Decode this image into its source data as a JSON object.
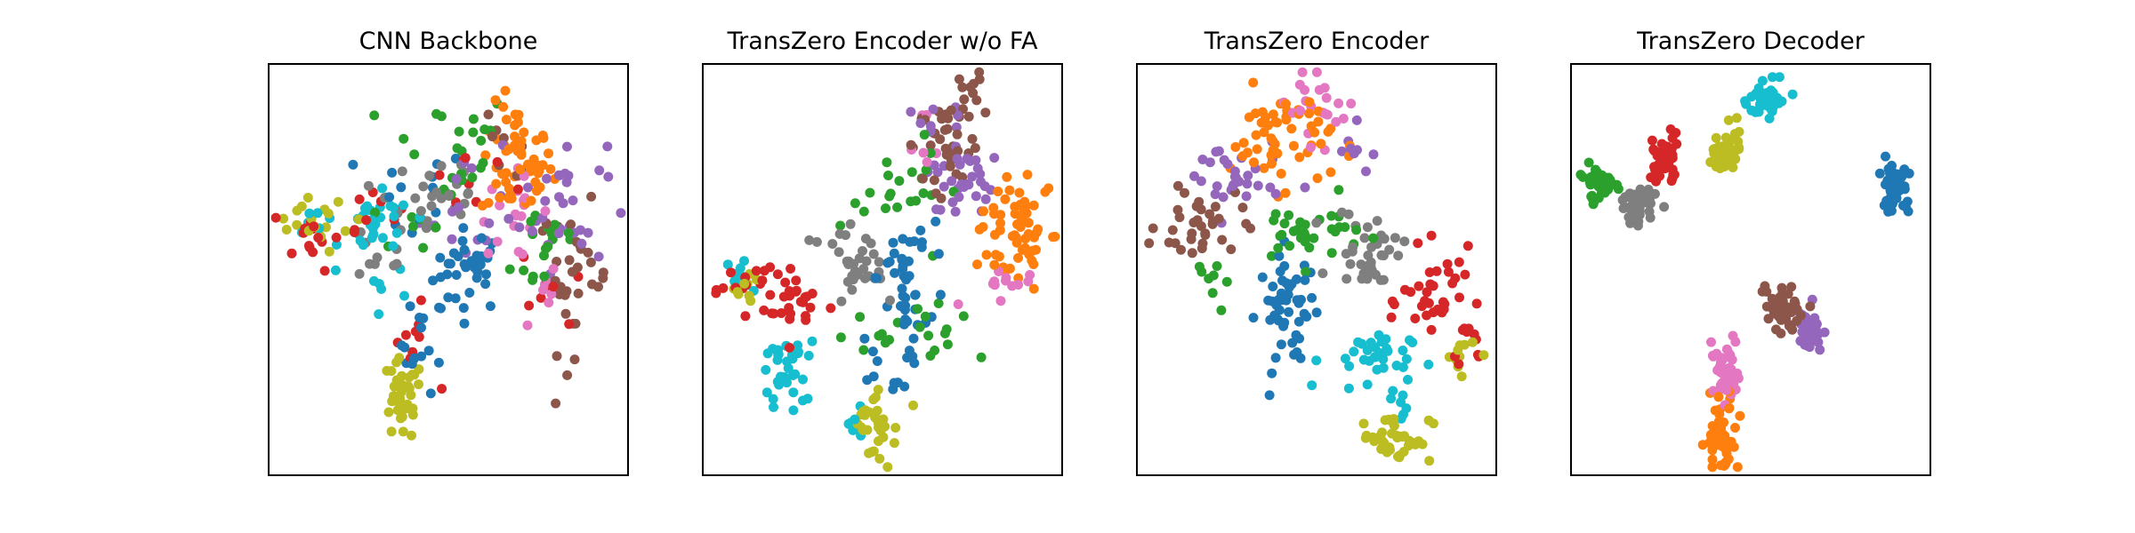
{
  "chart_data": [
    {
      "type": "scatter",
      "title": "CNN Backbone",
      "grid": false,
      "axes_visible": false,
      "xlim": [
        0,
        100
      ],
      "ylim": [
        0,
        100
      ],
      "series": [
        {
          "color": "#1f77b4",
          "clusters": [
            {
              "cx": 56,
              "cy": 50,
              "sx": 5,
              "sy": 5,
              "n": 34
            },
            {
              "cx": 43,
              "cy": 32,
              "sx": 3,
              "sy": 6,
              "n": 16
            },
            {
              "cx": 40,
              "cy": 68,
              "sx": 8,
              "sy": 6,
              "n": 12
            }
          ]
        },
        {
          "color": "#ff7f0e",
          "clusters": [
            {
              "cx": 69,
              "cy": 76,
              "sx": 5,
              "sy": 7,
              "n": 58
            }
          ]
        },
        {
          "color": "#2ca02c",
          "clusters": [
            {
              "cx": 50,
              "cy": 80,
              "sx": 9,
              "sy": 7,
              "n": 22
            },
            {
              "cx": 78,
              "cy": 56,
              "sx": 5,
              "sy": 7,
              "n": 18
            },
            {
              "cx": 40,
              "cy": 62,
              "sx": 6,
              "sy": 5,
              "n": 8
            }
          ]
        },
        {
          "color": "#d62728",
          "clusters": [
            {
              "cx": 12,
              "cy": 58,
              "sx": 4,
              "sy": 4,
              "n": 14
            },
            {
              "cx": 28,
              "cy": 66,
              "sx": 4,
              "sy": 3,
              "n": 8
            },
            {
              "cx": 40,
              "cy": 31,
              "sx": 3,
              "sy": 5,
              "n": 10
            },
            {
              "cx": 80,
              "cy": 46,
              "sx": 5,
              "sy": 6,
              "n": 8
            },
            {
              "cx": 55,
              "cy": 72,
              "sx": 8,
              "sy": 6,
              "n": 8
            }
          ]
        },
        {
          "color": "#9467bd",
          "clusters": [
            {
              "cx": 82,
              "cy": 66,
              "sx": 6,
              "sy": 8,
              "n": 30
            },
            {
              "cx": 58,
              "cy": 64,
              "sx": 8,
              "sy": 7,
              "n": 16
            }
          ]
        },
        {
          "color": "#8c564b",
          "clusters": [
            {
              "cx": 85,
              "cy": 48,
              "sx": 5,
              "sy": 9,
              "n": 32
            },
            {
              "cx": 65,
              "cy": 80,
              "sx": 6,
              "sy": 4,
              "n": 8
            }
          ]
        },
        {
          "color": "#e377c2",
          "clusters": [
            {
              "cx": 68,
              "cy": 63,
              "sx": 5,
              "sy": 5,
              "n": 22
            },
            {
              "cx": 78,
              "cy": 42,
              "sx": 3,
              "sy": 3,
              "n": 6
            }
          ]
        },
        {
          "color": "#7f7f7f",
          "clusters": [
            {
              "cx": 47,
              "cy": 68,
              "sx": 7,
              "sy": 7,
              "n": 30
            },
            {
              "cx": 30,
              "cy": 54,
              "sx": 5,
              "sy": 5,
              "n": 10
            }
          ]
        },
        {
          "color": "#bcbd22",
          "clusters": [
            {
              "cx": 37,
              "cy": 18,
              "sx": 3,
              "sy": 5,
              "n": 36
            },
            {
              "cx": 11,
              "cy": 59,
              "sx": 4,
              "sy": 3,
              "n": 12
            },
            {
              "cx": 20,
              "cy": 66,
              "sx": 6,
              "sy": 4,
              "n": 6
            }
          ]
        },
        {
          "color": "#17becf",
          "clusters": [
            {
              "cx": 30,
              "cy": 60,
              "sx": 5,
              "sy": 4,
              "n": 28
            },
            {
              "cx": 14,
              "cy": 62,
              "sx": 3,
              "sy": 3,
              "n": 6
            },
            {
              "cx": 36,
              "cy": 46,
              "sx": 5,
              "sy": 4,
              "n": 6
            }
          ]
        }
      ]
    },
    {
      "type": "scatter",
      "title": "TransZero Encoder w/o FA",
      "grid": false,
      "axes_visible": false,
      "xlim": [
        0,
        100
      ],
      "ylim": [
        0,
        100
      ],
      "series": [
        {
          "color": "#1f77b4",
          "clusters": [
            {
              "cx": 56,
              "cy": 45,
              "sx": 4,
              "sy": 6,
              "n": 32
            },
            {
              "cx": 52,
              "cy": 27,
              "sx": 4,
              "sy": 4,
              "n": 14
            },
            {
              "cx": 58,
              "cy": 58,
              "sx": 4,
              "sy": 4,
              "n": 8
            }
          ]
        },
        {
          "color": "#ff7f0e",
          "clusters": [
            {
              "cx": 87,
              "cy": 60,
              "sx": 5,
              "sy": 7,
              "n": 60
            }
          ]
        },
        {
          "color": "#2ca02c",
          "clusters": [
            {
              "cx": 56,
              "cy": 70,
              "sx": 6,
              "sy": 6,
              "n": 22
            },
            {
              "cx": 65,
              "cy": 36,
              "sx": 6,
              "sy": 5,
              "n": 12
            },
            {
              "cx": 48,
              "cy": 36,
              "sx": 5,
              "sy": 4,
              "n": 8
            }
          ]
        },
        {
          "color": "#d62728",
          "clusters": [
            {
              "cx": 26,
              "cy": 42,
              "sx": 5,
              "sy": 4,
              "n": 30
            },
            {
              "cx": 11,
              "cy": 46,
              "sx": 4,
              "sy": 3,
              "n": 12
            }
          ]
        },
        {
          "color": "#9467bd",
          "clusters": [
            {
              "cx": 72,
              "cy": 72,
              "sx": 5,
              "sy": 6,
              "n": 32
            },
            {
              "cx": 64,
              "cy": 88,
              "sx": 4,
              "sy": 3,
              "n": 8
            }
          ]
        },
        {
          "color": "#8c564b",
          "clusters": [
            {
              "cx": 68,
              "cy": 82,
              "sx": 5,
              "sy": 6,
              "n": 36
            },
            {
              "cx": 73,
              "cy": 92,
              "sx": 3,
              "sy": 3,
              "n": 10
            }
          ]
        },
        {
          "color": "#e377c2",
          "clusters": [
            {
              "cx": 84,
              "cy": 47,
              "sx": 4,
              "sy": 3,
              "n": 12
            },
            {
              "cx": 62,
              "cy": 82,
              "sx": 3,
              "sy": 4,
              "n": 6
            }
          ]
        },
        {
          "color": "#7f7f7f",
          "clusters": [
            {
              "cx": 43,
              "cy": 52,
              "sx": 4,
              "sy": 4,
              "n": 26
            },
            {
              "cx": 36,
              "cy": 56,
              "sx": 5,
              "sy": 4,
              "n": 6
            }
          ]
        },
        {
          "color": "#bcbd22",
          "clusters": [
            {
              "cx": 48,
              "cy": 12,
              "sx": 3,
              "sy": 4,
              "n": 32
            },
            {
              "cx": 12,
              "cy": 45,
              "sx": 4,
              "sy": 3,
              "n": 10
            }
          ]
        },
        {
          "color": "#17becf",
          "clusters": [
            {
              "cx": 23,
              "cy": 25,
              "sx": 3,
              "sy": 4,
              "n": 32
            },
            {
              "cx": 12,
              "cy": 50,
              "sx": 3,
              "sy": 3,
              "n": 8
            },
            {
              "cx": 42,
              "cy": 12,
              "sx": 3,
              "sy": 2,
              "n": 6
            }
          ]
        }
      ]
    },
    {
      "type": "scatter",
      "title": "TransZero Encoder",
      "grid": false,
      "axes_visible": false,
      "xlim": [
        0,
        100
      ],
      "ylim": [
        0,
        100
      ],
      "series": [
        {
          "color": "#1f77b4",
          "clusters": [
            {
              "cx": 42,
              "cy": 40,
              "sx": 4,
              "sy": 7,
              "n": 52
            }
          ]
        },
        {
          "color": "#ff7f0e",
          "clusters": [
            {
              "cx": 40,
              "cy": 82,
              "sx": 7,
              "sy": 6,
              "n": 56
            }
          ]
        },
        {
          "color": "#2ca02c",
          "clusters": [
            {
              "cx": 47,
              "cy": 59,
              "sx": 8,
              "sy": 4,
              "n": 32
            },
            {
              "cx": 22,
              "cy": 50,
              "sx": 4,
              "sy": 4,
              "n": 8
            }
          ]
        },
        {
          "color": "#d62728",
          "clusters": [
            {
              "cx": 84,
              "cy": 42,
              "sx": 5,
              "sy": 6,
              "n": 36
            },
            {
              "cx": 92,
              "cy": 33,
              "sx": 3,
              "sy": 3,
              "n": 10
            }
          ]
        },
        {
          "color": "#9467bd",
          "clusters": [
            {
              "cx": 26,
              "cy": 72,
              "sx": 7,
              "sy": 5,
              "n": 30
            },
            {
              "cx": 60,
              "cy": 76,
              "sx": 4,
              "sy": 4,
              "n": 8
            }
          ]
        },
        {
          "color": "#8c564b",
          "clusters": [
            {
              "cx": 18,
              "cy": 61,
              "sx": 6,
              "sy": 5,
              "n": 34
            }
          ]
        },
        {
          "color": "#e377c2",
          "clusters": [
            {
              "cx": 52,
              "cy": 88,
              "sx": 4,
              "sy": 4,
              "n": 16
            },
            {
              "cx": 42,
              "cy": 92,
              "sx": 4,
              "sy": 2,
              "n": 6
            }
          ]
        },
        {
          "color": "#7f7f7f",
          "clusters": [
            {
              "cx": 65,
              "cy": 55,
              "sx": 5,
              "sy": 5,
              "n": 36
            }
          ]
        },
        {
          "color": "#bcbd22",
          "clusters": [
            {
              "cx": 72,
              "cy": 9,
              "sx": 5,
              "sy": 3,
              "n": 38
            },
            {
              "cx": 90,
              "cy": 31,
              "sx": 3,
              "sy": 3,
              "n": 10
            }
          ]
        },
        {
          "color": "#17becf",
          "clusters": [
            {
              "cx": 64,
              "cy": 28,
              "sx": 6,
              "sy": 4,
              "n": 32
            },
            {
              "cx": 72,
              "cy": 18,
              "sx": 3,
              "sy": 4,
              "n": 8
            }
          ]
        }
      ]
    },
    {
      "type": "scatter",
      "title": "TransZero Decoder",
      "grid": false,
      "axes_visible": false,
      "xlim": [
        0,
        100
      ],
      "ylim": [
        0,
        100
      ],
      "series": [
        {
          "color": "#1f77b4",
          "clusters": [
            {
              "cx": 90,
              "cy": 70,
              "sx": 2,
              "sy": 3,
              "n": 48
            }
          ]
        },
        {
          "color": "#ff7f0e",
          "clusters": [
            {
              "cx": 42,
              "cy": 9,
              "sx": 2,
              "sy": 4,
              "n": 55
            }
          ]
        },
        {
          "color": "#2ca02c",
          "clusters": [
            {
              "cx": 8,
              "cy": 71,
              "sx": 2,
              "sy": 2,
              "n": 48
            }
          ]
        },
        {
          "color": "#d62728",
          "clusters": [
            {
              "cx": 26,
              "cy": 77,
              "sx": 2,
              "sy": 3,
              "n": 50
            }
          ]
        },
        {
          "color": "#9467bd",
          "clusters": [
            {
              "cx": 67,
              "cy": 35,
              "sx": 2,
              "sy": 3,
              "n": 42
            }
          ]
        },
        {
          "color": "#8c564b",
          "clusters": [
            {
              "cx": 59,
              "cy": 40,
              "sx": 3,
              "sy": 4,
              "n": 50
            }
          ]
        },
        {
          "color": "#e377c2",
          "clusters": [
            {
              "cx": 43,
              "cy": 25,
              "sx": 2,
              "sy": 3,
              "n": 46
            }
          ]
        },
        {
          "color": "#7f7f7f",
          "clusters": [
            {
              "cx": 19,
              "cy": 66,
              "sx": 3,
              "sy": 2,
              "n": 46
            }
          ]
        },
        {
          "color": "#bcbd22",
          "clusters": [
            {
              "cx": 43,
              "cy": 79,
              "sx": 2,
              "sy": 3,
              "n": 46
            }
          ]
        },
        {
          "color": "#17becf",
          "clusters": [
            {
              "cx": 54,
              "cy": 91,
              "sx": 2,
              "sy": 2,
              "n": 48
            }
          ]
        }
      ]
    }
  ]
}
